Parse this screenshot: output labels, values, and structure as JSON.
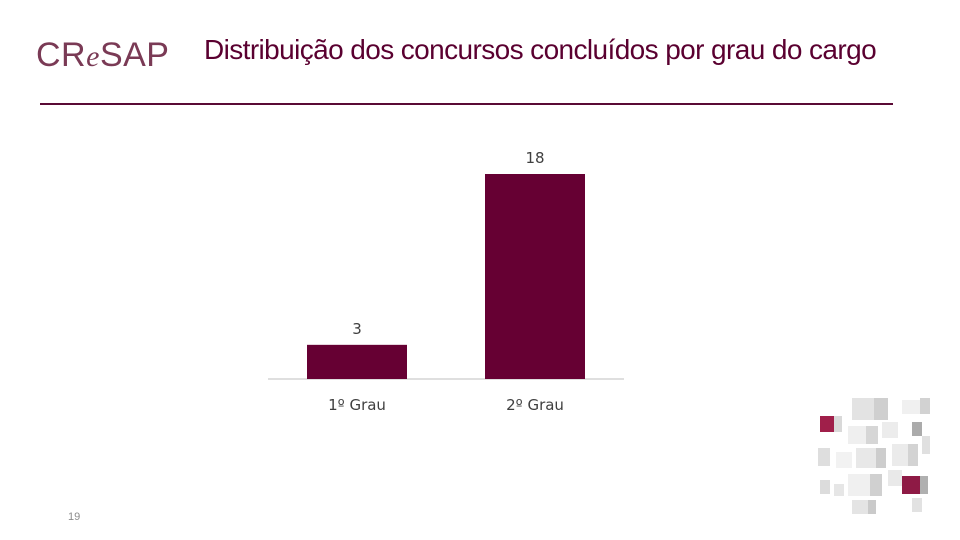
{
  "header": {
    "logo_prefix": "CR",
    "logo_e": "e",
    "logo_suffix": "SAP",
    "title": "Distribuição dos concursos concluídos por grau do cargo"
  },
  "footer": {
    "page_number": "19"
  },
  "colors": {
    "bar": "#660033",
    "accent": "#5a0a35",
    "axis": "#bfbfbf"
  },
  "chart_data": {
    "type": "bar",
    "categories": [
      "1º Grau",
      "2º Grau"
    ],
    "values": [
      3,
      18
    ],
    "data_labels": [
      "3",
      "18"
    ],
    "ylim": [
      0,
      18
    ],
    "grid": false,
    "title": "",
    "xlabel": "",
    "ylabel": ""
  }
}
